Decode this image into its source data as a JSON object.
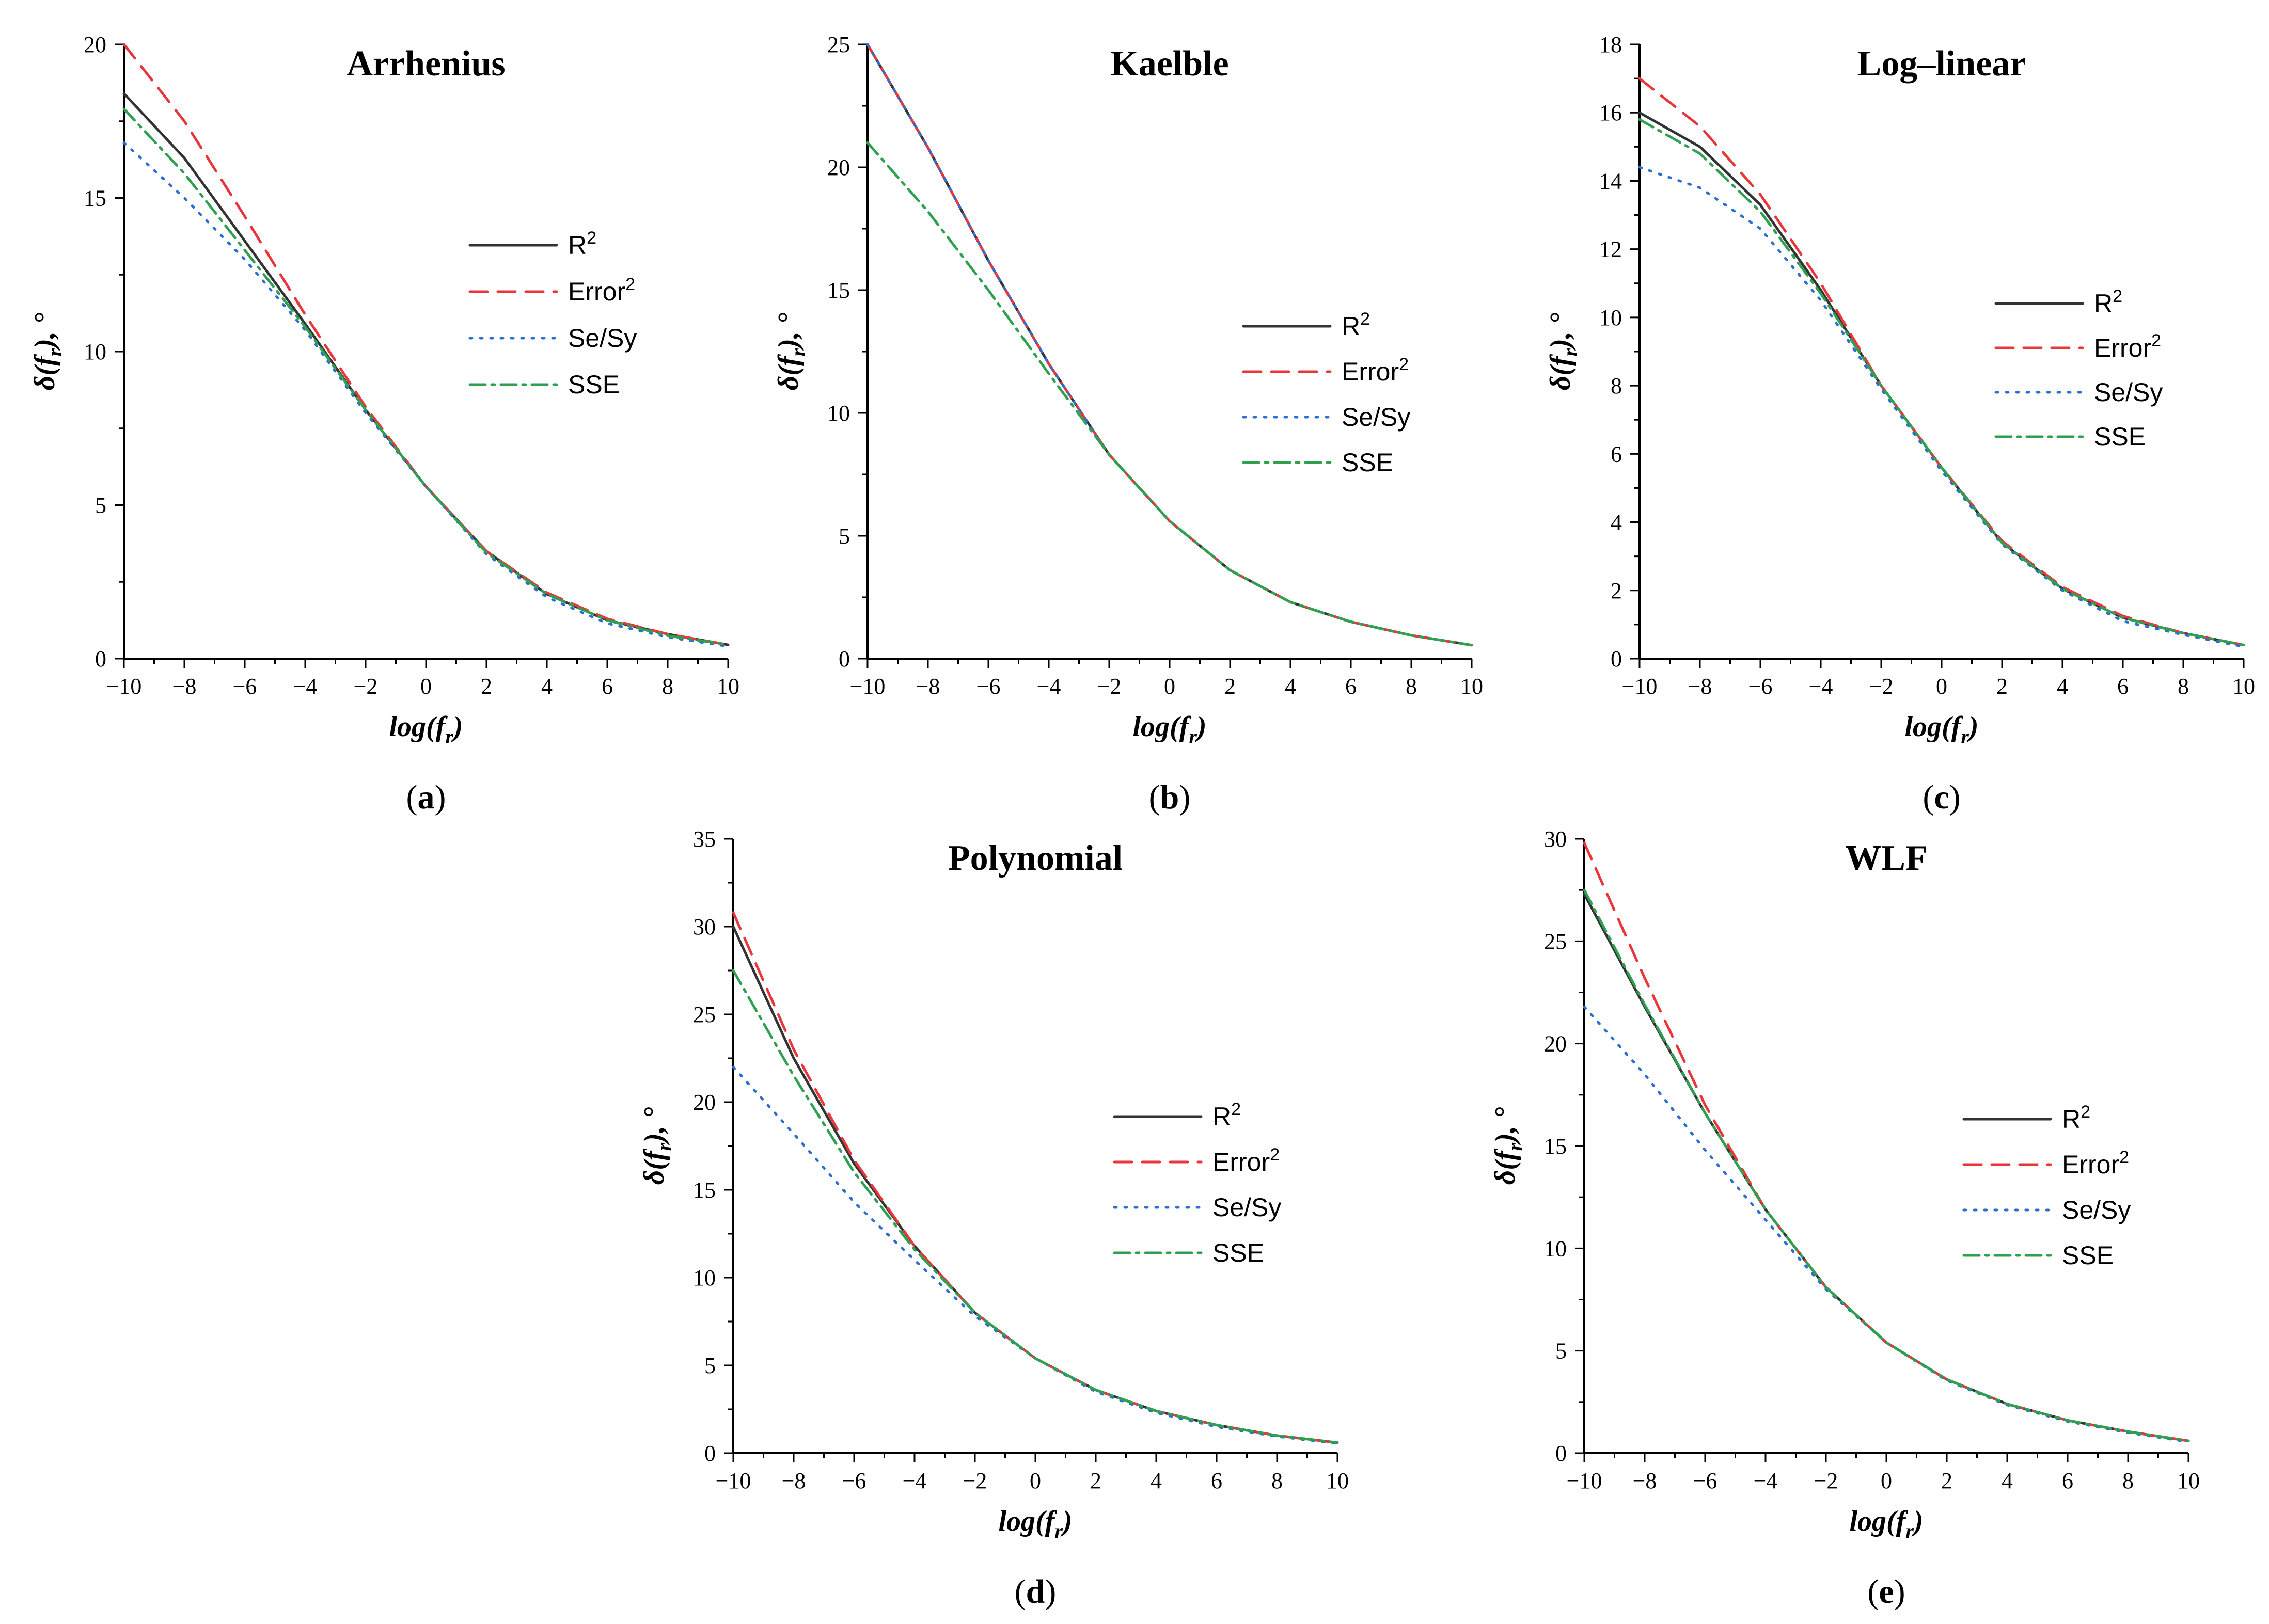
{
  "chart_data": [
    {
      "type": "line",
      "id": "a",
      "caption_letter": "a",
      "title": "Arrhenius",
      "xlabel": "log(f_r)",
      "ylabel": "δ(f_r), °",
      "xlim": [
        -10,
        10
      ],
      "ylim": [
        0,
        20
      ],
      "yticks": [
        0,
        5,
        10,
        15,
        20
      ],
      "legend_position": "right",
      "x": [
        -10,
        -8,
        -6,
        -4,
        -2,
        0,
        2,
        4,
        6,
        8,
        10
      ],
      "series": [
        {
          "name": "R",
          "sup": "2",
          "values": [
            18.4,
            16.3,
            13.6,
            10.9,
            8.1,
            5.6,
            3.5,
            2.1,
            1.25,
            0.8,
            0.45
          ]
        },
        {
          "name": "Error",
          "sup": "2",
          "values": [
            20.0,
            17.5,
            14.4,
            11.2,
            8.2,
            5.6,
            3.5,
            2.15,
            1.3,
            0.8,
            0.45
          ]
        },
        {
          "name": "Se/Sy",
          "sup": "",
          "values": [
            16.8,
            15.0,
            13.0,
            10.7,
            8.0,
            5.6,
            3.4,
            2.0,
            1.15,
            0.7,
            0.4
          ]
        },
        {
          "name": "SSE",
          "sup": "",
          "values": [
            17.9,
            15.8,
            13.3,
            10.8,
            8.1,
            5.6,
            3.45,
            2.1,
            1.25,
            0.75,
            0.45
          ]
        }
      ]
    },
    {
      "type": "line",
      "id": "b",
      "caption_letter": "b",
      "title": "Kaelble",
      "xlabel": "log(f_r)",
      "ylabel": "δ(f_r), °",
      "xlim": [
        -10,
        10
      ],
      "ylim": [
        0,
        25
      ],
      "yticks": [
        0,
        5,
        10,
        15,
        20,
        25
      ],
      "legend_position": "right",
      "x": [
        -10,
        -8,
        -6,
        -4,
        -2,
        0,
        2,
        4,
        6,
        8,
        10
      ],
      "series": [
        {
          "name": "R",
          "sup": "2",
          "values": [
            25.0,
            20.8,
            16.2,
            12.0,
            8.3,
            5.6,
            3.6,
            2.3,
            1.5,
            0.95,
            0.55
          ]
        },
        {
          "name": "Error",
          "sup": "2",
          "values": [
            25.0,
            20.8,
            16.2,
            12.0,
            8.3,
            5.6,
            3.6,
            2.3,
            1.5,
            0.95,
            0.55
          ]
        },
        {
          "name": "Se/Sy",
          "sup": "",
          "values": [
            25.0,
            20.8,
            16.2,
            12.0,
            8.3,
            5.6,
            3.6,
            2.3,
            1.5,
            0.95,
            0.55
          ]
        },
        {
          "name": "SSE",
          "sup": "",
          "values": [
            21.0,
            18.2,
            15.0,
            11.6,
            8.3,
            5.6,
            3.6,
            2.3,
            1.5,
            0.95,
            0.55
          ]
        }
      ]
    },
    {
      "type": "line",
      "id": "c",
      "caption_letter": "c",
      "title": "Log–linear",
      "xlabel": "log(f_r)",
      "ylabel": "δ(f_r), °",
      "xlim": [
        -10,
        10
      ],
      "ylim": [
        0,
        18
      ],
      "yticks": [
        0,
        2,
        4,
        6,
        8,
        10,
        12,
        14,
        16,
        18
      ],
      "legend_position": "right",
      "x": [
        -10,
        -8,
        -6,
        -4,
        -2,
        0,
        2,
        4,
        6,
        8,
        10
      ],
      "series": [
        {
          "name": "R",
          "sup": "2",
          "values": [
            16.0,
            15.0,
            13.3,
            10.8,
            8.0,
            5.6,
            3.4,
            2.05,
            1.2,
            0.75,
            0.4
          ]
        },
        {
          "name": "Error",
          "sup": "2",
          "values": [
            17.0,
            15.6,
            13.6,
            11.0,
            8.0,
            5.6,
            3.45,
            2.1,
            1.25,
            0.75,
            0.4
          ]
        },
        {
          "name": "Se/Sy",
          "sup": "",
          "values": [
            14.4,
            13.8,
            12.6,
            10.5,
            7.9,
            5.5,
            3.35,
            2.0,
            1.1,
            0.7,
            0.35
          ]
        },
        {
          "name": "SSE",
          "sup": "",
          "values": [
            15.8,
            14.8,
            13.1,
            10.7,
            8.0,
            5.6,
            3.4,
            2.05,
            1.2,
            0.75,
            0.4
          ]
        }
      ]
    },
    {
      "type": "line",
      "id": "d",
      "caption_letter": "d",
      "title": "Polynomial",
      "xlabel": "log(f_r)",
      "ylabel": "δ(f_r), °",
      "xlim": [
        -10,
        10
      ],
      "ylim": [
        0,
        35
      ],
      "yticks": [
        0,
        5,
        10,
        15,
        20,
        25,
        30,
        35
      ],
      "legend_position": "right",
      "x": [
        -10,
        -8,
        -6,
        -4,
        -2,
        0,
        2,
        4,
        6,
        8,
        10
      ],
      "series": [
        {
          "name": "R",
          "sup": "2",
          "values": [
            30.0,
            22.5,
            16.5,
            11.8,
            8.0,
            5.4,
            3.6,
            2.4,
            1.6,
            1.0,
            0.6
          ]
        },
        {
          "name": "Error",
          "sup": "2",
          "values": [
            30.8,
            23.0,
            16.7,
            11.8,
            8.0,
            5.4,
            3.6,
            2.4,
            1.6,
            1.0,
            0.6
          ]
        },
        {
          "name": "Se/Sy",
          "sup": "",
          "values": [
            22.0,
            18.2,
            14.3,
            11.0,
            7.8,
            5.4,
            3.5,
            2.3,
            1.5,
            0.95,
            0.55
          ]
        },
        {
          "name": "SSE",
          "sup": "",
          "values": [
            27.5,
            21.5,
            16.0,
            11.6,
            8.0,
            5.4,
            3.6,
            2.4,
            1.6,
            1.0,
            0.6
          ]
        }
      ]
    },
    {
      "type": "line",
      "id": "e",
      "caption_letter": "e",
      "title": "WLF",
      "xlabel": "log(f_r)",
      "ylabel": "δ(f_r), °",
      "xlim": [
        -10,
        10
      ],
      "ylim": [
        0,
        30
      ],
      "yticks": [
        0,
        5,
        10,
        15,
        20,
        25,
        30
      ],
      "legend_position": "right",
      "x": [
        -10,
        -8,
        -6,
        -4,
        -2,
        0,
        2,
        4,
        6,
        8,
        10
      ],
      "series": [
        {
          "name": "R",
          "sup": "2",
          "values": [
            27.3,
            21.8,
            16.6,
            11.9,
            8.1,
            5.4,
            3.6,
            2.4,
            1.6,
            1.05,
            0.6
          ]
        },
        {
          "name": "Error",
          "sup": "2",
          "values": [
            29.8,
            23.2,
            17.0,
            11.9,
            8.1,
            5.4,
            3.6,
            2.4,
            1.6,
            1.05,
            0.6
          ]
        },
        {
          "name": "Se/Sy",
          "sup": "",
          "values": [
            21.8,
            18.5,
            14.8,
            11.4,
            8.0,
            5.4,
            3.55,
            2.35,
            1.55,
            1.0,
            0.55
          ]
        },
        {
          "name": "SSE",
          "sup": "",
          "values": [
            27.5,
            21.9,
            16.6,
            11.9,
            8.1,
            5.4,
            3.6,
            2.4,
            1.6,
            1.05,
            0.6
          ]
        }
      ]
    }
  ],
  "series_styles": [
    {
      "color": "#333333",
      "dash": ""
    },
    {
      "color": "#e8363a",
      "dash": "34,20"
    },
    {
      "color": "#2a6fd1",
      "dash": "4,16"
    },
    {
      "color": "#2ea050",
      "dash": "30,12,6,12"
    }
  ],
  "xticks": [
    -10,
    -8,
    -6,
    -4,
    -2,
    0,
    2,
    4,
    6,
    8,
    10
  ],
  "xtick_labels": [
    "−10",
    "−8",
    "−6",
    "−4",
    "−2",
    "0",
    "2",
    "4",
    "6",
    "8",
    "10"
  ],
  "caption_open": "(",
  "caption_close": ")"
}
